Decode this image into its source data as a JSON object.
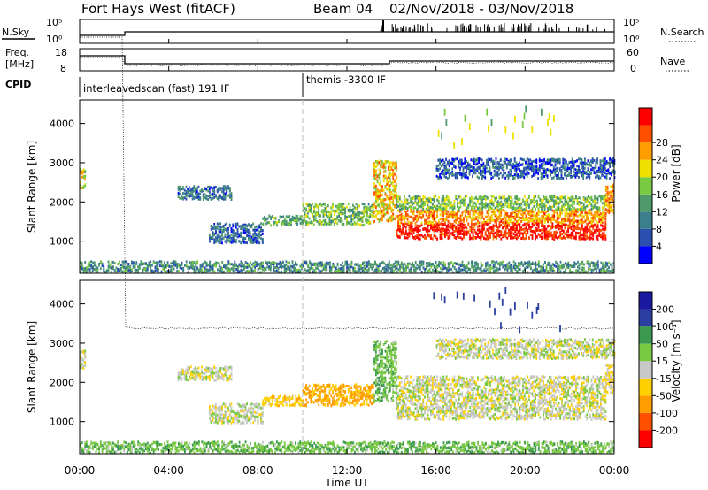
{
  "header": {
    "site": "Fort Hays West (fitACF)",
    "beam": "Beam 04",
    "dates": "02/Nov/2018 - 03/Nov/2018"
  },
  "side_labels": {
    "nsky": "N.Sky",
    "freq_line1": "Freq.",
    "freq_line2": "[MHz]",
    "cpid": "CPID",
    "nsearch": "N.Search",
    "nave": "Nave"
  },
  "nsky_panel": {
    "left_ticks": [
      "10^5",
      "10^0"
    ],
    "right_ticks": [
      "10^5",
      "10^0"
    ]
  },
  "freq_panel": {
    "left_ticks": [
      "18",
      "8"
    ],
    "right_ticks": [
      "60",
      "0"
    ]
  },
  "cpid_panel": {
    "segments": [
      {
        "label": "interleavedscan (fast) 191 IF",
        "start_hour": 0,
        "end_hour": 10
      },
      {
        "label": "themis -3300 IF",
        "start_hour": 10,
        "end_hour": 24
      }
    ]
  },
  "colors": {
    "power": [
      "#0000ff",
      "#2a4fb0",
      "#3c7f8c",
      "#4f9a6a",
      "#7ac943",
      "#f0e000",
      "#ff9d00",
      "#ff5000",
      "#ff0000"
    ],
    "velocity": [
      "#ff0000",
      "#ff5000",
      "#ff9d00",
      "#ffd000",
      "#c8c8c8",
      "#7ac943",
      "#3c9a50",
      "#2a3fa0",
      "#1a1aa0"
    ]
  },
  "chart_data": [
    {
      "type": "heatmap",
      "name": "power-panel",
      "x": {
        "label": "Time UT",
        "range": [
          0,
          24
        ],
        "ticks": [
          "00:00",
          "04:00",
          "08:00",
          "12:00",
          "16:00",
          "20:00",
          "00:00"
        ]
      },
      "ylabel": "Slant Range [km]",
      "ylim": [
        180,
        4600
      ],
      "y_ticks": [
        1000,
        2000,
        3000,
        4000
      ],
      "colorbar": {
        "label": "Power [dB]",
        "ticks": [
          "4",
          "8",
          "12",
          "16",
          "20",
          "24",
          "28"
        ],
        "range": [
          0,
          30
        ]
      },
      "regions": [
        {
          "t0": 0.0,
          "t1": 0.25,
          "r0": 2350,
          "r1": 2850,
          "v": 18
        },
        {
          "t0": 0.0,
          "t1": 24.0,
          "r0": 200,
          "r1": 480,
          "v": 10
        },
        {
          "t0": 4.4,
          "t1": 6.8,
          "r0": 2050,
          "r1": 2400,
          "v": 8
        },
        {
          "t0": 5.8,
          "t1": 8.2,
          "r0": 950,
          "r1": 1450,
          "v": 7
        },
        {
          "t0": 8.2,
          "t1": 10.0,
          "r0": 1400,
          "r1": 1650,
          "v": 12
        },
        {
          "t0": 10.0,
          "t1": 13.2,
          "r0": 1400,
          "r1": 1950,
          "v": 14
        },
        {
          "t0": 13.2,
          "t1": 14.2,
          "r0": 1500,
          "r1": 3050,
          "v": 20
        },
        {
          "t0": 14.2,
          "t1": 23.6,
          "r0": 1050,
          "r1": 1450,
          "v": 28
        },
        {
          "t0": 14.2,
          "t1": 23.6,
          "r0": 1450,
          "r1": 1800,
          "v": 22
        },
        {
          "t0": 14.2,
          "t1": 23.6,
          "r0": 1800,
          "r1": 2150,
          "v": 14
        },
        {
          "t0": 23.6,
          "t1": 24.0,
          "r0": 1700,
          "r1": 2450,
          "v": 22
        },
        {
          "t0": 16.0,
          "t1": 24.0,
          "r0": 2600,
          "r1": 3100,
          "v": 6
        },
        {
          "t0": 15.8,
          "t1": 22.0,
          "r0": 3300,
          "r1": 4400,
          "v": 15
        }
      ]
    },
    {
      "type": "heatmap",
      "name": "velocity-panel",
      "x": {
        "label": "Time UT",
        "range": [
          0,
          24
        ],
        "ticks": [
          "00:00",
          "04:00",
          "08:00",
          "12:00",
          "16:00",
          "20:00",
          "00:00"
        ]
      },
      "ylabel": "Slant Range [km]",
      "ylim": [
        180,
        4600
      ],
      "y_ticks": [
        1000,
        2000,
        3000,
        4000
      ],
      "colorbar": {
        "label": "Velocity [m s^-1]",
        "ticks": [
          "-200",
          "-100",
          "-50",
          "-15",
          "15",
          "50",
          "100",
          "200"
        ]
      },
      "regions": [
        {
          "t0": 0.0,
          "t1": 0.25,
          "r0": 2350,
          "r1": 2850,
          "v": 0
        },
        {
          "t0": 0.0,
          "t1": 24.0,
          "r0": 200,
          "r1": 480,
          "v": 40
        },
        {
          "t0": 4.4,
          "t1": 6.8,
          "r0": 2050,
          "r1": 2400,
          "v": 0
        },
        {
          "t0": 5.8,
          "t1": 8.2,
          "r0": 950,
          "r1": 1450,
          "v": 0
        },
        {
          "t0": 8.2,
          "t1": 10.0,
          "r0": 1400,
          "r1": 1650,
          "v": -30
        },
        {
          "t0": 10.0,
          "t1": 13.2,
          "r0": 1400,
          "r1": 1950,
          "v": -60
        },
        {
          "t0": 13.2,
          "t1": 14.2,
          "r0": 1500,
          "r1": 3050,
          "v": 40
        },
        {
          "t0": 14.2,
          "t1": 23.6,
          "r0": 1050,
          "r1": 2150,
          "v": 0
        },
        {
          "t0": 23.6,
          "t1": 24.0,
          "r0": 1700,
          "r1": 2450,
          "v": -20
        },
        {
          "t0": 16.0,
          "t1": 24.0,
          "r0": 2600,
          "r1": 3100,
          "v": 0
        },
        {
          "t0": 15.8,
          "t1": 22.0,
          "r0": 3300,
          "r1": 4400,
          "v": 150
        }
      ]
    }
  ]
}
